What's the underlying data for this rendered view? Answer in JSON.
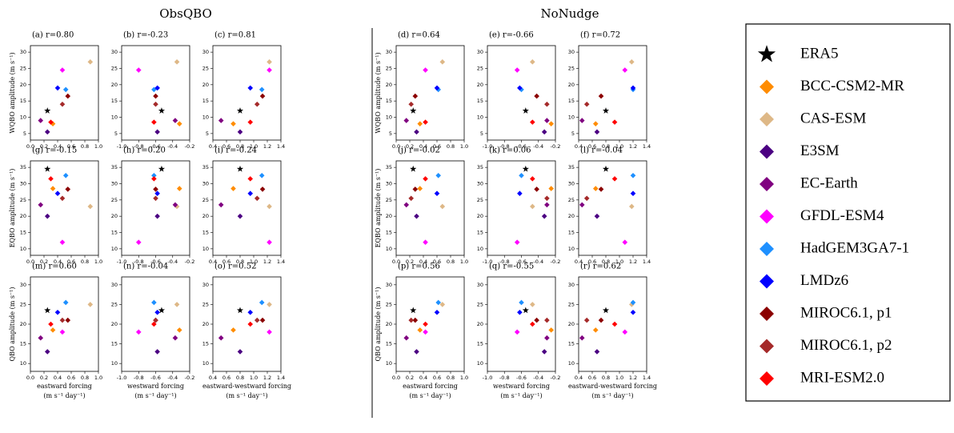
{
  "groups": [
    "ObsQBO",
    "NoNudge"
  ],
  "legend": [
    {
      "name": "ERA5",
      "color": "#000000",
      "marker": "star"
    },
    {
      "name": "BCC-CSM2-MR",
      "color": "#ff8c00",
      "marker": "diamond"
    },
    {
      "name": "CAS-ESM",
      "color": "#deb887",
      "marker": "diamond"
    },
    {
      "name": "E3SM",
      "color": "#4b0082",
      "marker": "diamond"
    },
    {
      "name": "EC-Earth",
      "color": "#800080",
      "marker": "diamond"
    },
    {
      "name": "GFDL-ESM4",
      "color": "#ff00ff",
      "marker": "diamond"
    },
    {
      "name": "HadGEM3GA7-1",
      "color": "#1e90ff",
      "marker": "diamond"
    },
    {
      "name": "LMDz6",
      "color": "#0000ff",
      "marker": "diamond"
    },
    {
      "name": "MIROC6.1, p1",
      "color": "#8b0000",
      "marker": "diamond"
    },
    {
      "name": "MIROC6.1, p2",
      "color": "#a52a2a",
      "marker": "diamond"
    },
    {
      "name": "MRI-ESM2.0",
      "color": "#ff0000",
      "marker": "diamond"
    }
  ],
  "chart_data": [
    {
      "type": "scatter",
      "title": "(a) r=0.80",
      "ylabel": "WQBO amplitude (m s⁻¹)",
      "xlim": [
        0,
        1
      ],
      "xticks": [
        {
          "value": 0,
          "label": "0.0"
        },
        0.2,
        0.4,
        0.6,
        0.8,
        {
          "value": 1,
          "label": "1.0"
        }
      ],
      "ylim": [
        3,
        32
      ],
      "yticks": [
        5,
        10,
        15,
        20,
        25,
        30
      ],
      "x": [
        0.25,
        0.33,
        0.88,
        0.25,
        0.15,
        0.47,
        0.52,
        0.4,
        0.55,
        0.47,
        0.3
      ],
      "values": [
        12,
        8,
        27,
        5.5,
        9,
        24.5,
        18.5,
        19,
        16.5,
        14,
        8.5
      ]
    },
    {
      "type": "scatter",
      "title": "(b) r=-0.23",
      "xlim": [
        -1,
        -0.2
      ],
      "xticks": [
        {
          "value": -1,
          "label": "-1.0"
        },
        -0.8,
        -0.6,
        -0.4,
        -0.2
      ],
      "ylim": [
        3,
        32
      ],
      "yticks": [
        5,
        10,
        15,
        20,
        25,
        30
      ],
      "x": [
        -0.53,
        -0.32,
        -0.35,
        -0.58,
        -0.37,
        -0.8,
        -0.62,
        -0.58,
        -0.6,
        -0.6,
        -0.62
      ],
      "values": [
        12,
        8,
        27,
        5.5,
        9,
        24.5,
        18.5,
        19,
        16.5,
        14,
        8.5
      ]
    },
    {
      "type": "scatter",
      "title": "(c) r=0.81",
      "xlim": [
        0.4,
        1.4
      ],
      "xticks": [
        0.4,
        0.6,
        0.8,
        {
          "value": 1,
          "label": "1.0"
        },
        1.2,
        1.4
      ],
      "ylim": [
        3,
        32
      ],
      "yticks": [
        5,
        10,
        15,
        20,
        25,
        30
      ],
      "x": [
        0.8,
        0.7,
        1.23,
        0.8,
        0.52,
        1.23,
        1.12,
        0.95,
        1.13,
        1.05,
        0.95
      ],
      "values": [
        12,
        8,
        27,
        5.5,
        9,
        24.5,
        18.5,
        19,
        16.5,
        14,
        8.5
      ]
    },
    {
      "type": "scatter",
      "title": "(d) r=0.64",
      "ylabel": "WQBO amplitude (m s⁻¹)",
      "xlim": [
        0,
        1
      ],
      "xticks": [
        {
          "value": 0,
          "label": "0.0"
        },
        0.2,
        0.4,
        0.6,
        0.8,
        {
          "value": 1,
          "label": "1.0"
        }
      ],
      "ylim": [
        3,
        32
      ],
      "yticks": [
        5,
        10,
        15,
        20,
        25,
        30
      ],
      "x": [
        0.25,
        0.35,
        0.68,
        0.3,
        0.15,
        0.43,
        0.62,
        0.6,
        0.28,
        0.22,
        0.43
      ],
      "values": [
        12,
        8,
        27,
        5.5,
        9,
        24.5,
        18.5,
        19,
        16.5,
        14,
        8.5
      ]
    },
    {
      "type": "scatter",
      "title": "(e) r=-0.66",
      "xlim": [
        -1,
        -0.2
      ],
      "xticks": [
        {
          "value": -1,
          "label": "-1.0"
        },
        -0.8,
        -0.6,
        -0.4,
        -0.2
      ],
      "ylim": [
        3,
        32
      ],
      "yticks": [
        5,
        10,
        15,
        20,
        25,
        30
      ],
      "x": [
        -0.55,
        -0.25,
        -0.47,
        -0.33,
        -0.3,
        -0.65,
        -0.6,
        -0.62,
        -0.42,
        -0.3,
        -0.47
      ],
      "values": [
        12,
        8,
        27,
        5.5,
        9,
        24.5,
        18.5,
        19,
        16.5,
        14,
        8.5
      ]
    },
    {
      "type": "scatter",
      "title": "(f) r=0.72",
      "xlim": [
        0.4,
        1.4
      ],
      "xticks": [
        0.4,
        0.6,
        0.8,
        {
          "value": 1,
          "label": "1.0"
        },
        1.2,
        1.4
      ],
      "ylim": [
        3,
        32
      ],
      "yticks": [
        5,
        10,
        15,
        20,
        25,
        30
      ],
      "x": [
        0.8,
        0.65,
        1.18,
        0.67,
        0.45,
        1.08,
        1.2,
        1.2,
        0.73,
        0.52,
        0.93
      ],
      "values": [
        12,
        8,
        27,
        5.5,
        9,
        24.5,
        18.5,
        19,
        16.5,
        14,
        8.5
      ]
    },
    {
      "type": "scatter",
      "title": "(g) r=-0.15",
      "ylabel": "EQBO amplitude (m s⁻¹)",
      "xlim": [
        0,
        1
      ],
      "xticks": [
        {
          "value": 0,
          "label": "0.0"
        },
        0.2,
        0.4,
        0.6,
        0.8,
        {
          "value": 1,
          "label": "1.0"
        }
      ],
      "ylim": [
        8,
        37
      ],
      "yticks": [
        10,
        15,
        20,
        25,
        30,
        35
      ],
      "x": [
        0.25,
        0.33,
        0.88,
        0.25,
        0.15,
        0.47,
        0.52,
        0.4,
        0.55,
        0.47,
        0.3
      ],
      "values": [
        34.5,
        28.5,
        23,
        20,
        23.5,
        12,
        32.5,
        27,
        28.3,
        25.5,
        31.5
      ]
    },
    {
      "type": "scatter",
      "title": "(h) r=0.20",
      "xlim": [
        -1,
        -0.2
      ],
      "xticks": [
        {
          "value": -1,
          "label": "-1.0"
        },
        -0.8,
        -0.6,
        -0.4,
        -0.2
      ],
      "ylim": [
        8,
        37
      ],
      "yticks": [
        10,
        15,
        20,
        25,
        30,
        35
      ],
      "x": [
        -0.53,
        -0.32,
        -0.35,
        -0.58,
        -0.37,
        -0.8,
        -0.62,
        -0.58,
        -0.6,
        -0.6,
        -0.62
      ],
      "values": [
        34.5,
        28.5,
        23,
        20,
        23.5,
        12,
        32.5,
        27,
        28.3,
        25.5,
        31.5
      ]
    },
    {
      "type": "scatter",
      "title": "(i) r=-0.24",
      "xlim": [
        0.4,
        1.4
      ],
      "xticks": [
        0.4,
        0.6,
        0.8,
        {
          "value": 1,
          "label": "1.0"
        },
        1.2,
        1.4
      ],
      "ylim": [
        8,
        37
      ],
      "yticks": [
        10,
        15,
        20,
        25,
        30,
        35
      ],
      "x": [
        0.8,
        0.7,
        1.23,
        0.8,
        0.52,
        1.23,
        1.12,
        0.95,
        1.13,
        1.05,
        0.95
      ],
      "values": [
        34.5,
        28.5,
        23,
        20,
        23.5,
        12,
        32.5,
        27,
        28.3,
        25.5,
        31.5
      ]
    },
    {
      "type": "scatter",
      "title": "(j) r=-0.02",
      "ylabel": "EQBO amplitude (m s⁻¹)",
      "xlim": [
        0,
        1
      ],
      "xticks": [
        {
          "value": 0,
          "label": "0.0"
        },
        0.2,
        0.4,
        0.6,
        0.8,
        {
          "value": 1,
          "label": "1.0"
        }
      ],
      "ylim": [
        8,
        37
      ],
      "yticks": [
        10,
        15,
        20,
        25,
        30,
        35
      ],
      "x": [
        0.25,
        0.35,
        0.68,
        0.3,
        0.15,
        0.43,
        0.62,
        0.6,
        0.28,
        0.22,
        0.43
      ],
      "values": [
        34.5,
        28.5,
        23,
        20,
        23.5,
        12,
        32.5,
        27,
        28.3,
        25.5,
        31.5
      ]
    },
    {
      "type": "scatter",
      "title": "(k) r=0.06",
      "xlim": [
        -1,
        -0.2
      ],
      "xticks": [
        {
          "value": -1,
          "label": "-1.0"
        },
        -0.8,
        -0.6,
        -0.4,
        -0.2
      ],
      "ylim": [
        8,
        37
      ],
      "yticks": [
        10,
        15,
        20,
        25,
        30,
        35
      ],
      "x": [
        -0.55,
        -0.25,
        -0.47,
        -0.33,
        -0.3,
        -0.65,
        -0.6,
        -0.62,
        -0.42,
        -0.3,
        -0.47
      ],
      "values": [
        34.5,
        28.5,
        23,
        20,
        23.5,
        12,
        32.5,
        27,
        28.3,
        25.5,
        31.5
      ]
    },
    {
      "type": "scatter",
      "title": "(l) r=-0.04",
      "xlim": [
        0.4,
        1.4
      ],
      "xticks": [
        0.4,
        0.6,
        0.8,
        {
          "value": 1,
          "label": "1.0"
        },
        1.2,
        1.4
      ],
      "ylim": [
        8,
        37
      ],
      "yticks": [
        10,
        15,
        20,
        25,
        30,
        35
      ],
      "x": [
        0.8,
        0.65,
        1.18,
        0.67,
        0.45,
        1.08,
        1.2,
        1.2,
        0.73,
        0.52,
        0.93
      ],
      "values": [
        34.5,
        28.5,
        23,
        20,
        23.5,
        12,
        32.5,
        27,
        28.3,
        25.5,
        31.5
      ]
    },
    {
      "type": "scatter",
      "title": "(m) r=0.60",
      "ylabel": "QBO amplitude (m s⁻¹)",
      "xlabel": "eastward forcing",
      "xunit": "(m s⁻¹ day⁻¹)",
      "xlim": [
        0,
        1
      ],
      "xticks": [
        {
          "value": 0,
          "label": "0.0"
        },
        0.2,
        0.4,
        0.6,
        0.8,
        {
          "value": 1,
          "label": "1.0"
        }
      ],
      "ylim": [
        8,
        32
      ],
      "yticks": [
        10,
        15,
        20,
        25,
        30
      ],
      "x": [
        0.25,
        0.33,
        0.88,
        0.25,
        0.15,
        0.47,
        0.52,
        0.4,
        0.55,
        0.47,
        0.3
      ],
      "values": [
        23.5,
        18.5,
        25,
        13,
        16.5,
        18,
        25.5,
        23,
        21,
        21,
        20
      ]
    },
    {
      "type": "scatter",
      "title": "(n) r=-0.04",
      "xlabel": "westward forcing",
      "xunit": "(m s⁻¹ day⁻¹)",
      "xlim": [
        -1,
        -0.2
      ],
      "xticks": [
        {
          "value": -1,
          "label": "-1.0"
        },
        -0.8,
        -0.6,
        -0.4,
        -0.2
      ],
      "ylim": [
        8,
        32
      ],
      "yticks": [
        10,
        15,
        20,
        25,
        30
      ],
      "x": [
        -0.53,
        -0.32,
        -0.35,
        -0.58,
        -0.37,
        -0.8,
        -0.62,
        -0.58,
        -0.6,
        -0.6,
        -0.62
      ],
      "values": [
        23.5,
        18.5,
        25,
        13,
        16.5,
        18,
        25.5,
        23,
        21,
        21,
        20
      ]
    },
    {
      "type": "scatter",
      "title": "(o) r=0.52",
      "xlabel": "eastward-westward forcing",
      "xunit": "(m s⁻¹ day⁻¹)",
      "xlim": [
        0.4,
        1.4
      ],
      "xticks": [
        0.4,
        0.6,
        0.8,
        {
          "value": 1,
          "label": "1.0"
        },
        1.2,
        1.4
      ],
      "ylim": [
        8,
        32
      ],
      "yticks": [
        10,
        15,
        20,
        25,
        30
      ],
      "x": [
        0.8,
        0.7,
        1.23,
        0.8,
        0.52,
        1.23,
        1.12,
        0.95,
        1.13,
        1.05,
        0.95
      ],
      "values": [
        23.5,
        18.5,
        25,
        13,
        16.5,
        18,
        25.5,
        23,
        21,
        21,
        20
      ]
    },
    {
      "type": "scatter",
      "title": "(p) r=0.56",
      "ylabel": "QBO amplitude (m s⁻¹)",
      "xlabel": "eastward forcing",
      "xunit": "(m s⁻¹ day⁻¹)",
      "xlim": [
        0,
        1
      ],
      "xticks": [
        {
          "value": 0,
          "label": "0.0"
        },
        0.2,
        0.4,
        0.6,
        0.8,
        {
          "value": 1,
          "label": "1.0"
        }
      ],
      "ylim": [
        8,
        32
      ],
      "yticks": [
        10,
        15,
        20,
        25,
        30
      ],
      "x": [
        0.25,
        0.35,
        0.68,
        0.3,
        0.15,
        0.43,
        0.62,
        0.6,
        0.28,
        0.22,
        0.43
      ],
      "values": [
        23.5,
        18.5,
        25,
        13,
        16.5,
        18,
        25.5,
        23,
        21,
        21,
        20
      ]
    },
    {
      "type": "scatter",
      "title": "(q) r=-0.55",
      "xlabel": "westward forcing",
      "xunit": "(m s⁻¹ day⁻¹)",
      "xlim": [
        -1,
        -0.2
      ],
      "xticks": [
        {
          "value": -1,
          "label": "-1.0"
        },
        -0.8,
        -0.6,
        -0.4,
        -0.2
      ],
      "ylim": [
        8,
        32
      ],
      "yticks": [
        10,
        15,
        20,
        25,
        30
      ],
      "x": [
        -0.55,
        -0.25,
        -0.47,
        -0.33,
        -0.3,
        -0.65,
        -0.6,
        -0.62,
        -0.42,
        -0.3,
        -0.47
      ],
      "values": [
        23.5,
        18.5,
        25,
        13,
        16.5,
        18,
        25.5,
        23,
        21,
        21,
        20
      ]
    },
    {
      "type": "scatter",
      "title": "(r) r=0.62",
      "xlabel": "eastward-westward forcing",
      "xunit": "(m s⁻¹ day⁻¹)",
      "xlim": [
        0.4,
        1.4
      ],
      "xticks": [
        0.4,
        0.6,
        0.8,
        {
          "value": 1,
          "label": "1.0"
        },
        1.2,
        1.4
      ],
      "ylim": [
        8,
        32
      ],
      "yticks": [
        10,
        15,
        20,
        25,
        30
      ],
      "x": [
        0.8,
        0.65,
        1.18,
        0.67,
        0.45,
        1.08,
        1.2,
        1.2,
        0.73,
        0.52,
        0.93
      ],
      "values": [
        23.5,
        18.5,
        25,
        13,
        16.5,
        18,
        25.5,
        23,
        21,
        21,
        20
      ]
    }
  ]
}
